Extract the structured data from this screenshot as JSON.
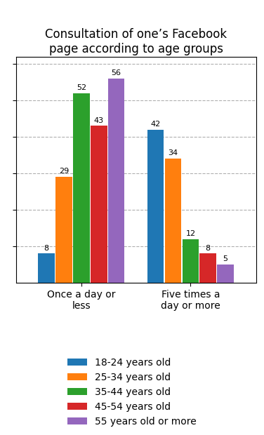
{
  "chart_data": {
    "type": "bar",
    "title": "Consultation of one’s Facebook\npage according to age groups",
    "categories": [
      "Once a day or less",
      "Five times a day or more"
    ],
    "series": [
      {
        "name": "18-24 years old",
        "values": [
          8,
          42
        ]
      },
      {
        "name": "25-34 years old",
        "values": [
          29,
          34
        ]
      },
      {
        "name": "35-44 years old",
        "values": [
          52,
          12
        ]
      },
      {
        "name": "45-54 years old",
        "values": [
          43,
          8
        ]
      },
      {
        "name": "55 years old or more",
        "values": [
          56,
          5
        ]
      }
    ],
    "ylim": [
      0,
      62
    ],
    "yticks": [
      10,
      20,
      30,
      40,
      50,
      60
    ],
    "grid": true,
    "data_labels": true,
    "tick_labels": "x",
    "legend": "lower center"
  }
}
